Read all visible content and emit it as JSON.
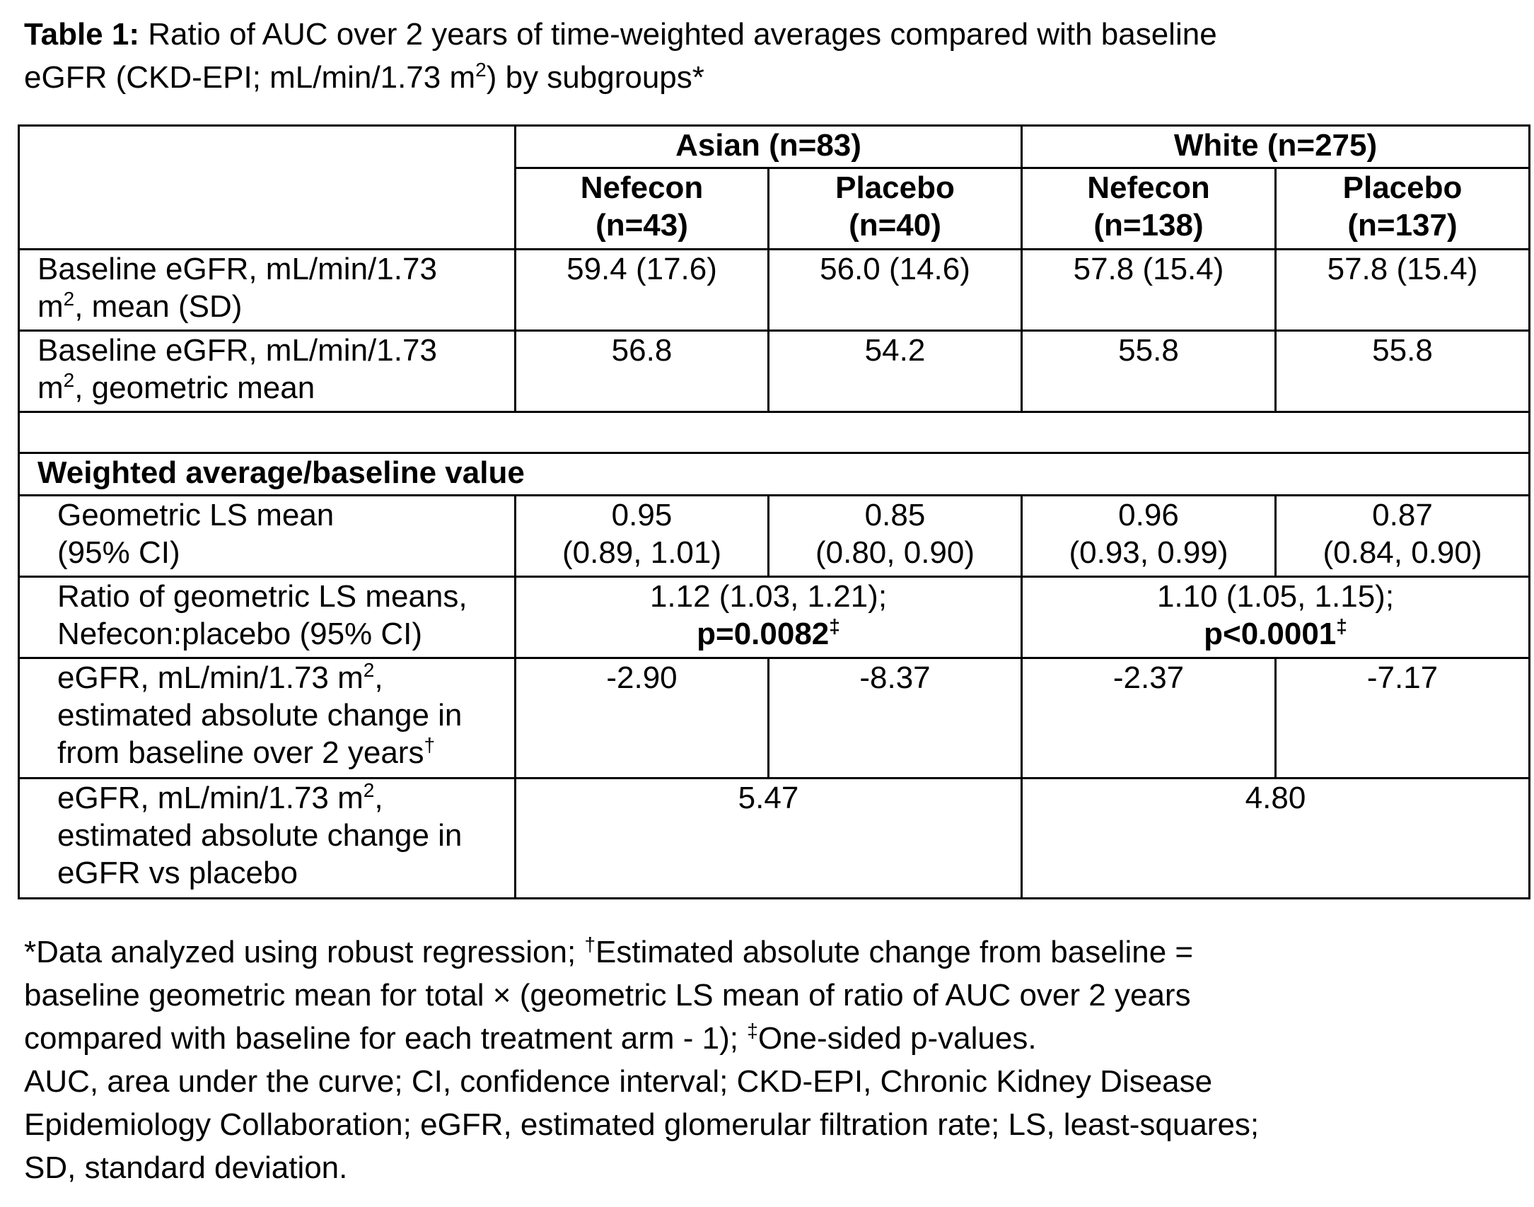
{
  "title": {
    "label": "Table 1:",
    "line1": " Ratio of AUC over 2 years of time-weighted averages compared with baseline",
    "line2_pre": "eGFR (CKD-EPI; mL/min/1.73 m",
    "line2_sup": "2",
    "line2_post": ") by subgroups*"
  },
  "groups": [
    {
      "label": "Asian (n=83)"
    },
    {
      "label": "White (n=275)"
    }
  ],
  "arms": [
    {
      "name": "Nefecon",
      "n": "(n=43)"
    },
    {
      "name": "Placebo",
      "n": "(n=40)"
    },
    {
      "name": "Nefecon",
      "n": "(n=138)"
    },
    {
      "name": "Placebo",
      "n": "(n=137)"
    }
  ],
  "rows": {
    "baseline_mean": {
      "label1": "Baseline eGFR, mL/min/1.73",
      "label2_pre": "m",
      "label2_sup": "2",
      "label2_post": ", mean (SD)",
      "values": [
        "59.4 (17.6)",
        "56.0 (14.6)",
        "57.8 (15.4)",
        "57.8 (15.4)"
      ]
    },
    "baseline_geo": {
      "label1": "Baseline eGFR, mL/min/1.73",
      "label2_pre": "m",
      "label2_sup": "2",
      "label2_post": ", geometric mean",
      "values": [
        "56.8",
        "54.2",
        "55.8",
        "55.8"
      ]
    },
    "section": "Weighted average/baseline value",
    "ls_mean": {
      "label1": "Geometric LS mean",
      "label2": "(95% CI)",
      "values": [
        {
          "v": "0.95",
          "ci": "(0.89, 1.01)"
        },
        {
          "v": "0.85",
          "ci": "(0.80, 0.90)"
        },
        {
          "v": "0.96",
          "ci": "(0.93, 0.99)"
        },
        {
          "v": "0.87",
          "ci": "(0.84, 0.90)"
        }
      ]
    },
    "ratio": {
      "label1": "Ratio of geometric LS means,",
      "label2": "Nefecon:placebo (95% CI)",
      "values": [
        {
          "v": "1.12 (1.03, 1.21);",
          "p": "p=0.0082",
          "mark": "‡"
        },
        {
          "v": "1.10 (1.05, 1.15);",
          "p": "p<0.0001",
          "mark": "‡"
        }
      ]
    },
    "abs_change": {
      "label1_pre": "eGFR, mL/min/1.73 m",
      "label1_sup": "2",
      "label1_post": ",",
      "label2": "estimated absolute change in",
      "label3": "from baseline over 2 years",
      "label3_sup": "†",
      "values": [
        "-2.90",
        "-8.37",
        "-2.37",
        "-7.17"
      ]
    },
    "vs_placebo": {
      "label1_pre": "eGFR, mL/min/1.73 m",
      "label1_sup": "2",
      "label1_post": ",",
      "label2": "estimated absolute change in",
      "label3": "eGFR vs placebo",
      "values": [
        "5.47",
        "4.80"
      ]
    }
  },
  "footnotes": {
    "l1_a": "*Data analyzed using robust regression; ",
    "l1_sup": "†",
    "l1_b": "Estimated absolute change from baseline =",
    "l2": "baseline geometric mean for total × (geometric LS mean of ratio of AUC over 2 years",
    "l3_a": "compared with baseline for each treatment arm - 1); ",
    "l3_sup": "‡",
    "l3_b": "One-sided p-values.",
    "l4": "AUC, area under the curve; CI, confidence interval; CKD-EPI, Chronic Kidney Disease",
    "l5": "Epidemiology Collaboration; eGFR, estimated glomerular filtration rate; LS, least-squares;",
    "l6": "SD, standard deviation."
  }
}
